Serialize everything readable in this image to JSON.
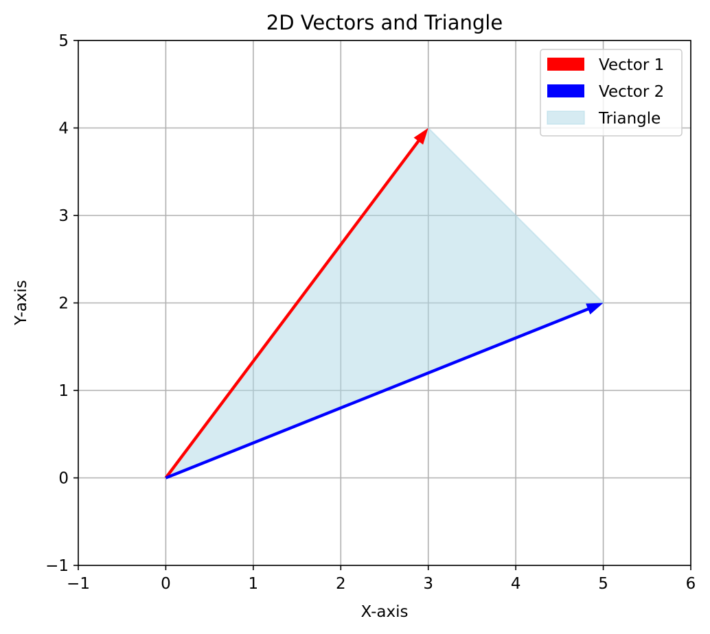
{
  "chart_data": {
    "type": "vector-plot",
    "title": "2D Vectors and Triangle",
    "xlabel": "X-axis",
    "ylabel": "Y-axis",
    "xlim": [
      -1,
      6
    ],
    "ylim": [
      -1,
      5
    ],
    "xticks": [
      -1,
      0,
      1,
      2,
      3,
      4,
      5,
      6
    ],
    "yticks": [
      -1,
      0,
      1,
      2,
      3,
      4,
      5
    ],
    "xtick_labels": [
      "−1",
      "0",
      "1",
      "2",
      "3",
      "4",
      "5",
      "6"
    ],
    "ytick_labels": [
      "−1",
      "0",
      "1",
      "2",
      "3",
      "4",
      "5"
    ],
    "grid": true,
    "legend_position": "top-right",
    "vectors": [
      {
        "name": "Vector 1",
        "origin": [
          0,
          0
        ],
        "components": [
          3,
          4
        ],
        "color": "#ff0000"
      },
      {
        "name": "Vector 2",
        "origin": [
          0,
          0
        ],
        "components": [
          5,
          2
        ],
        "color": "#0000ff"
      }
    ],
    "triangle": {
      "name": "Triangle",
      "vertices": [
        [
          0,
          0
        ],
        [
          3,
          4
        ],
        [
          5,
          2
        ]
      ],
      "color": "#add8e6"
    }
  }
}
